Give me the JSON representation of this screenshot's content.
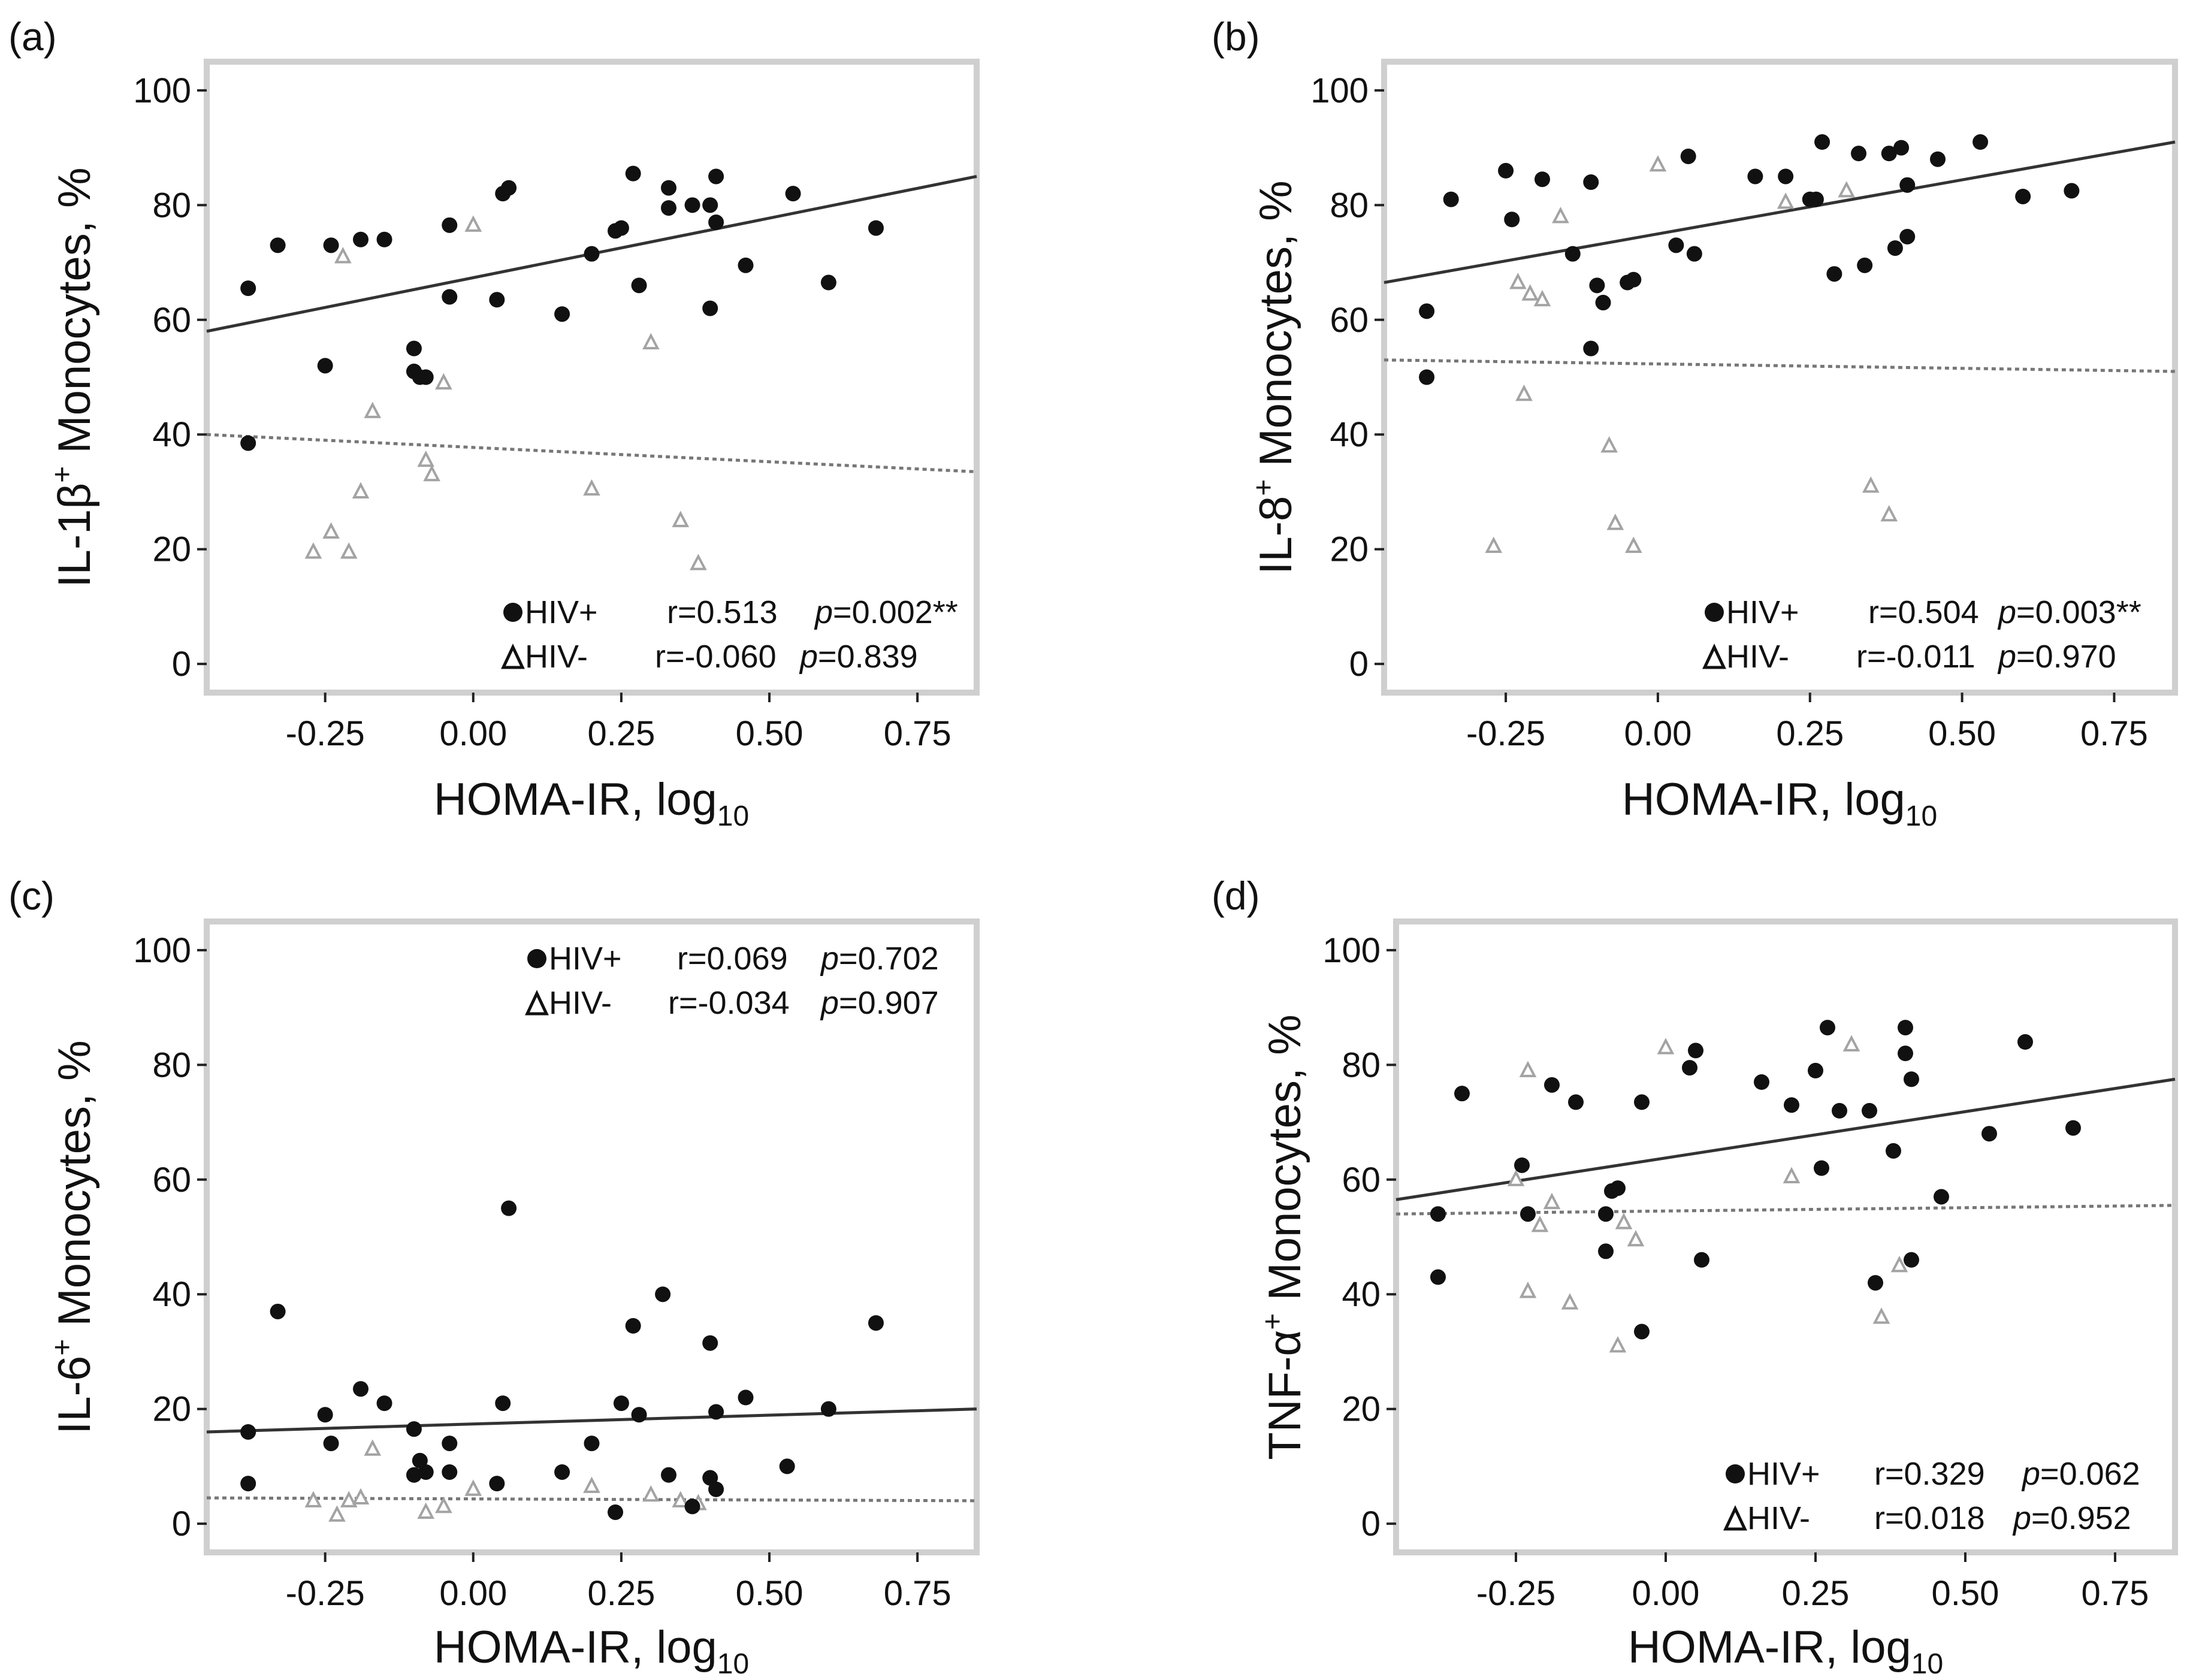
{
  "chart_data": [
    {
      "type": "scatter",
      "panel": "(a)",
      "ylabel_main": "IL-1β",
      "ylabel_sup": "+",
      "ylabel_rest": " Monocytes, %",
      "xlabel_main": "HOMA-IR, log",
      "xlabel_sub": "10",
      "xlim": [
        -0.45,
        0.85
      ],
      "ylim": [
        -5,
        105
      ],
      "xticks": [
        -0.25,
        0.0,
        0.25,
        0.5,
        0.75
      ],
      "xtick_labels": [
        "-0.25",
        "0.00",
        "0.25",
        "0.50",
        "0.75"
      ],
      "yticks": [
        0,
        20,
        40,
        60,
        80,
        100
      ],
      "ytick_labels": [
        "0",
        "20",
        "40",
        "60",
        "80",
        "100"
      ],
      "legend_pos": "bottom-right",
      "series": [
        {
          "name": "HIV+",
          "marker": "circle",
          "r_label": "r=0.513",
          "p_prefix": "p",
          "p_label": "=0.002**",
          "fit": [
            [
              -0.45,
              58
            ],
            [
              0.85,
              85
            ]
          ],
          "points": [
            [
              -0.38,
              65.5
            ],
            [
              -0.33,
              73
            ],
            [
              -0.25,
              52
            ],
            [
              -0.24,
              73
            ],
            [
              -0.19,
              74
            ],
            [
              -0.15,
              74
            ],
            [
              -0.1,
              55
            ],
            [
              -0.1,
              51
            ],
            [
              -0.09,
              50
            ],
            [
              -0.08,
              50
            ],
            [
              -0.04,
              76.5
            ],
            [
              -0.04,
              64
            ],
            [
              0.04,
              63.5
            ],
            [
              0.05,
              82
            ],
            [
              0.06,
              83
            ],
            [
              0.15,
              61
            ],
            [
              0.2,
              71.5
            ],
            [
              0.24,
              75.5
            ],
            [
              0.25,
              76
            ],
            [
              0.27,
              85.5
            ],
            [
              0.28,
              66
            ],
            [
              0.33,
              83
            ],
            [
              0.33,
              79.5
            ],
            [
              0.37,
              80
            ],
            [
              0.4,
              62
            ],
            [
              0.4,
              80
            ],
            [
              0.41,
              85
            ],
            [
              0.41,
              77
            ],
            [
              0.46,
              69.5
            ],
            [
              0.54,
              82
            ],
            [
              0.6,
              66.5
            ],
            [
              0.68,
              76
            ],
            [
              -0.38,
              38.5
            ]
          ]
        },
        {
          "name": "HIV-",
          "marker": "triangle",
          "r_label": "r=-0.060",
          "p_prefix": "p",
          "p_label": "=0.839",
          "fit": [
            [
              -0.45,
              40
            ],
            [
              0.85,
              33.5
            ]
          ],
          "points": [
            [
              -0.27,
              19.5
            ],
            [
              -0.24,
              23
            ],
            [
              -0.22,
              71
            ],
            [
              -0.21,
              19.5
            ],
            [
              -0.19,
              30
            ],
            [
              -0.17,
              44
            ],
            [
              -0.08,
              35.5
            ],
            [
              -0.07,
              33
            ],
            [
              -0.05,
              49
            ],
            [
              0.0,
              76.5
            ],
            [
              0.2,
              30.5
            ],
            [
              0.3,
              56
            ],
            [
              0.35,
              25
            ],
            [
              0.38,
              17.5
            ]
          ]
        }
      ]
    },
    {
      "type": "scatter",
      "panel": "(b)",
      "ylabel_main": "IL-8",
      "ylabel_sup": "+",
      "ylabel_rest": " Monocytes, %",
      "xlabel_main": "HOMA-IR, log",
      "xlabel_sub": "10",
      "xlim": [
        -0.45,
        0.85
      ],
      "ylim": [
        -5,
        105
      ],
      "xticks": [
        -0.25,
        0.0,
        0.25,
        0.5,
        0.75
      ],
      "xtick_labels": [
        "-0.25",
        "0.00",
        "0.25",
        "0.50",
        "0.75"
      ],
      "yticks": [
        0,
        20,
        40,
        60,
        80,
        100
      ],
      "ytick_labels": [
        "0",
        "20",
        "40",
        "60",
        "80",
        "100"
      ],
      "legend_pos": "bottom-right",
      "series": [
        {
          "name": "HIV+",
          "marker": "circle",
          "r_label": "r=0.504",
          "p_prefix": "p",
          "p_label": "=0.003**",
          "fit": [
            [
              -0.45,
              66.5
            ],
            [
              0.85,
              91
            ]
          ],
          "points": [
            [
              -0.38,
              61.5
            ],
            [
              -0.38,
              50
            ],
            [
              -0.34,
              81
            ],
            [
              -0.25,
              86
            ],
            [
              -0.24,
              77.5
            ],
            [
              -0.19,
              84.5
            ],
            [
              -0.14,
              71.5
            ],
            [
              -0.11,
              84
            ],
            [
              -0.11,
              55
            ],
            [
              -0.1,
              66
            ],
            [
              -0.09,
              63
            ],
            [
              -0.05,
              66.5
            ],
            [
              -0.04,
              67
            ],
            [
              0.03,
              73
            ],
            [
              0.05,
              88.5
            ],
            [
              0.06,
              71.5
            ],
            [
              0.16,
              85
            ],
            [
              0.21,
              85
            ],
            [
              0.25,
              81
            ],
            [
              0.26,
              81
            ],
            [
              0.27,
              91
            ],
            [
              0.29,
              68
            ],
            [
              0.33,
              89
            ],
            [
              0.34,
              69.5
            ],
            [
              0.38,
              89
            ],
            [
              0.39,
              72.5
            ],
            [
              0.4,
              90
            ],
            [
              0.41,
              83.5
            ],
            [
              0.41,
              74.5
            ],
            [
              0.46,
              88
            ],
            [
              0.53,
              91
            ],
            [
              0.6,
              81.5
            ],
            [
              0.68,
              82.5
            ]
          ]
        },
        {
          "name": "HIV-",
          "marker": "triangle",
          "r_label": "r=-0.011",
          "p_prefix": "p",
          "p_label": "=0.970",
          "fit": [
            [
              -0.45,
              53
            ],
            [
              0.85,
              51
            ]
          ],
          "points": [
            [
              -0.27,
              20.5
            ],
            [
              -0.23,
              66.5
            ],
            [
              -0.22,
              47
            ],
            [
              -0.21,
              64.5
            ],
            [
              -0.19,
              63.5
            ],
            [
              -0.16,
              78
            ],
            [
              -0.08,
              38
            ],
            [
              -0.07,
              24.5
            ],
            [
              -0.04,
              20.5
            ],
            [
              0.0,
              87
            ],
            [
              0.21,
              80.5
            ],
            [
              0.31,
              82.5
            ],
            [
              0.35,
              31
            ],
            [
              0.38,
              26
            ]
          ]
        }
      ]
    },
    {
      "type": "scatter",
      "panel": "(c)",
      "ylabel_main": "IL-6",
      "ylabel_sup": "+",
      "ylabel_rest": " Monocytes, %",
      "xlabel_main": "HOMA-IR, log",
      "xlabel_sub": "10",
      "xlim": [
        -0.45,
        0.85
      ],
      "ylim": [
        -5,
        105
      ],
      "xticks": [
        -0.25,
        0.0,
        0.25,
        0.5,
        0.75
      ],
      "xtick_labels": [
        "-0.25",
        "0.00",
        "0.25",
        "0.50",
        "0.75"
      ],
      "yticks": [
        0,
        20,
        40,
        60,
        80,
        100
      ],
      "ytick_labels": [
        "0",
        "20",
        "40",
        "60",
        "80",
        "100"
      ],
      "legend_pos": "top-right",
      "series": [
        {
          "name": "HIV+",
          "marker": "circle",
          "r_label": "r=0.069",
          "p_prefix": "p",
          "p_label": "=0.702",
          "fit": [
            [
              -0.45,
              16
            ],
            [
              0.85,
              20
            ]
          ],
          "points": [
            [
              -0.38,
              16
            ],
            [
              -0.38,
              7
            ],
            [
              -0.33,
              37
            ],
            [
              -0.25,
              19
            ],
            [
              -0.24,
              14
            ],
            [
              -0.19,
              23.5
            ],
            [
              -0.15,
              21
            ],
            [
              -0.1,
              16.5
            ],
            [
              -0.1,
              8.5
            ],
            [
              -0.09,
              11
            ],
            [
              -0.08,
              9
            ],
            [
              -0.04,
              14
            ],
            [
              -0.04,
              9
            ],
            [
              0.04,
              7
            ],
            [
              0.05,
              21
            ],
            [
              0.06,
              55
            ],
            [
              0.15,
              9
            ],
            [
              0.2,
              14
            ],
            [
              0.24,
              2
            ],
            [
              0.25,
              21
            ],
            [
              0.27,
              34.5
            ],
            [
              0.28,
              19
            ],
            [
              0.32,
              40
            ],
            [
              0.33,
              8.5
            ],
            [
              0.37,
              3
            ],
            [
              0.4,
              8
            ],
            [
              0.4,
              31.5
            ],
            [
              0.41,
              19.5
            ],
            [
              0.41,
              6
            ],
            [
              0.46,
              22
            ],
            [
              0.53,
              10
            ],
            [
              0.6,
              20
            ],
            [
              0.68,
              35
            ]
          ]
        },
        {
          "name": "HIV-",
          "marker": "triangle",
          "r_label": "r=-0.034",
          "p_prefix": "p",
          "p_label": "=0.907",
          "fit": [
            [
              -0.45,
              4.5
            ],
            [
              0.85,
              4
            ]
          ],
          "points": [
            [
              -0.27,
              4
            ],
            [
              -0.23,
              1.5
            ],
            [
              -0.21,
              4
            ],
            [
              -0.19,
              4.5
            ],
            [
              -0.17,
              13
            ],
            [
              -0.08,
              2
            ],
            [
              -0.05,
              3
            ],
            [
              0.0,
              6
            ],
            [
              0.2,
              6.5
            ],
            [
              0.3,
              5
            ],
            [
              0.35,
              4
            ],
            [
              0.38,
              3.5
            ]
          ]
        }
      ]
    },
    {
      "type": "scatter",
      "panel": "(d)",
      "ylabel_main": "TNF-α",
      "ylabel_sup": "+",
      "ylabel_rest": " Monocytes, %",
      "xlabel_main": "HOMA-IR, log",
      "xlabel_sub": "10",
      "xlim": [
        -0.45,
        0.85
      ],
      "ylim": [
        -5,
        105
      ],
      "xticks": [
        -0.25,
        0.0,
        0.25,
        0.5,
        0.75
      ],
      "xtick_labels": [
        "-0.25",
        "0.00",
        "0.25",
        "0.50",
        "0.75"
      ],
      "yticks": [
        0,
        20,
        40,
        60,
        80,
        100
      ],
      "ytick_labels": [
        "0",
        "20",
        "40",
        "60",
        "80",
        "100"
      ],
      "legend_pos": "bottom-right",
      "series": [
        {
          "name": "HIV+",
          "marker": "circle",
          "r_label": "r=0.329",
          "p_prefix": "p",
          "p_label": "=0.062",
          "fit": [
            [
              -0.45,
              56.5
            ],
            [
              0.85,
              77.5
            ]
          ],
          "points": [
            [
              -0.38,
              54
            ],
            [
              -0.38,
              43
            ],
            [
              -0.34,
              75
            ],
            [
              -0.24,
              62.5
            ],
            [
              -0.23,
              54
            ],
            [
              -0.19,
              76.5
            ],
            [
              -0.15,
              73.5
            ],
            [
              -0.1,
              47.5
            ],
            [
              -0.1,
              54
            ],
            [
              -0.09,
              58
            ],
            [
              -0.08,
              58.5
            ],
            [
              -0.04,
              73.5
            ],
            [
              -0.04,
              33.5
            ],
            [
              0.04,
              79.5
            ],
            [
              0.05,
              82.5
            ],
            [
              0.06,
              46
            ],
            [
              0.16,
              77
            ],
            [
              0.21,
              73
            ],
            [
              0.25,
              79
            ],
            [
              0.26,
              62
            ],
            [
              0.27,
              86.5
            ],
            [
              0.29,
              72
            ],
            [
              0.34,
              72
            ],
            [
              0.35,
              42
            ],
            [
              0.38,
              65
            ],
            [
              0.4,
              82
            ],
            [
              0.4,
              86.5
            ],
            [
              0.41,
              77.5
            ],
            [
              0.41,
              46
            ],
            [
              0.46,
              57
            ],
            [
              0.54,
              68
            ],
            [
              0.6,
              84
            ],
            [
              0.68,
              69
            ]
          ]
        },
        {
          "name": "HIV-",
          "marker": "triangle",
          "r_label": "r=0.018",
          "p_prefix": "p",
          "p_label": "=0.952",
          "fit": [
            [
              -0.45,
              54
            ],
            [
              0.85,
              55.5
            ]
          ],
          "points": [
            [
              -0.25,
              60
            ],
            [
              -0.23,
              79
            ],
            [
              -0.23,
              40.5
            ],
            [
              -0.21,
              52
            ],
            [
              -0.19,
              56
            ],
            [
              -0.16,
              38.5
            ],
            [
              -0.08,
              31
            ],
            [
              -0.07,
              52.5
            ],
            [
              -0.05,
              49.5
            ],
            [
              0.0,
              83
            ],
            [
              0.21,
              60.5
            ],
            [
              0.31,
              83.5
            ],
            [
              0.36,
              36
            ],
            [
              0.39,
              45
            ]
          ]
        }
      ]
    }
  ]
}
